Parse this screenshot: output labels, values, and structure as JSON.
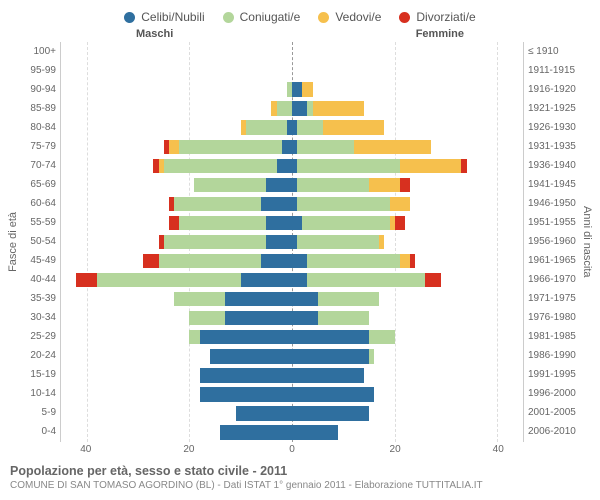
{
  "legend": [
    {
      "label": "Celibi/Nubili",
      "color": "#2f6f9f"
    },
    {
      "label": "Coniugati/e",
      "color": "#b3d69b"
    },
    {
      "label": "Vedovi/e",
      "color": "#f6c04d"
    },
    {
      "label": "Divorziati/e",
      "color": "#d7301f"
    }
  ],
  "gender": {
    "male": "Maschi",
    "female": "Femmine"
  },
  "axis_left_title": "Fasce di età",
  "axis_right_title": "Anni di nascita",
  "x_axis": {
    "max": 45,
    "ticks": [
      40,
      20,
      0,
      20,
      40
    ]
  },
  "title": "Popolazione per età, sesso e stato civile - 2011",
  "subtitle": "COMUNE DI SAN TOMASO AGORDINO (BL) - Dati ISTAT 1° gennaio 2011 - Elaborazione TUTTITALIA.IT",
  "colors": {
    "single": "#2f6f9f",
    "married": "#b3d69b",
    "widowed": "#f6c04d",
    "divorced": "#d7301f"
  },
  "rows": [
    {
      "age": "100+",
      "birth": "≤ 1910",
      "m": {
        "single": 0,
        "married": 0,
        "widowed": 0,
        "divorced": 0
      },
      "f": {
        "single": 0,
        "married": 0,
        "widowed": 0,
        "divorced": 0
      }
    },
    {
      "age": "95-99",
      "birth": "1911-1915",
      "m": {
        "single": 0,
        "married": 0,
        "widowed": 0,
        "divorced": 0
      },
      "f": {
        "single": 0,
        "married": 0,
        "widowed": 0,
        "divorced": 0
      }
    },
    {
      "age": "90-94",
      "birth": "1916-1920",
      "m": {
        "single": 0,
        "married": 1,
        "widowed": 0,
        "divorced": 0
      },
      "f": {
        "single": 2,
        "married": 0,
        "widowed": 2,
        "divorced": 0
      }
    },
    {
      "age": "85-89",
      "birth": "1921-1925",
      "m": {
        "single": 0,
        "married": 3,
        "widowed": 1,
        "divorced": 0
      },
      "f": {
        "single": 3,
        "married": 1,
        "widowed": 10,
        "divorced": 0
      }
    },
    {
      "age": "80-84",
      "birth": "1926-1930",
      "m": {
        "single": 1,
        "married": 8,
        "widowed": 1,
        "divorced": 0
      },
      "f": {
        "single": 1,
        "married": 5,
        "widowed": 12,
        "divorced": 0
      }
    },
    {
      "age": "75-79",
      "birth": "1931-1935",
      "m": {
        "single": 2,
        "married": 20,
        "widowed": 2,
        "divorced": 1
      },
      "f": {
        "single": 1,
        "married": 11,
        "widowed": 15,
        "divorced": 0
      }
    },
    {
      "age": "70-74",
      "birth": "1936-1940",
      "m": {
        "single": 3,
        "married": 22,
        "widowed": 1,
        "divorced": 1
      },
      "f": {
        "single": 1,
        "married": 20,
        "widowed": 12,
        "divorced": 1
      }
    },
    {
      "age": "65-69",
      "birth": "1941-1945",
      "m": {
        "single": 5,
        "married": 14,
        "widowed": 0,
        "divorced": 0
      },
      "f": {
        "single": 1,
        "married": 14,
        "widowed": 6,
        "divorced": 2
      }
    },
    {
      "age": "60-64",
      "birth": "1946-1950",
      "m": {
        "single": 6,
        "married": 17,
        "widowed": 0,
        "divorced": 1
      },
      "f": {
        "single": 1,
        "married": 18,
        "widowed": 4,
        "divorced": 0
      }
    },
    {
      "age": "55-59",
      "birth": "1951-1955",
      "m": {
        "single": 5,
        "married": 17,
        "widowed": 0,
        "divorced": 2
      },
      "f": {
        "single": 2,
        "married": 17,
        "widowed": 1,
        "divorced": 2
      }
    },
    {
      "age": "50-54",
      "birth": "1956-1960",
      "m": {
        "single": 5,
        "married": 20,
        "widowed": 0,
        "divorced": 1
      },
      "f": {
        "single": 1,
        "married": 16,
        "widowed": 1,
        "divorced": 0
      }
    },
    {
      "age": "45-49",
      "birth": "1961-1965",
      "m": {
        "single": 6,
        "married": 20,
        "widowed": 0,
        "divorced": 3
      },
      "f": {
        "single": 3,
        "married": 18,
        "widowed": 2,
        "divorced": 1
      }
    },
    {
      "age": "40-44",
      "birth": "1966-1970",
      "m": {
        "single": 10,
        "married": 28,
        "widowed": 0,
        "divorced": 4
      },
      "f": {
        "single": 3,
        "married": 23,
        "widowed": 0,
        "divorced": 3
      }
    },
    {
      "age": "35-39",
      "birth": "1971-1975",
      "m": {
        "single": 13,
        "married": 10,
        "widowed": 0,
        "divorced": 0
      },
      "f": {
        "single": 5,
        "married": 12,
        "widowed": 0,
        "divorced": 0
      }
    },
    {
      "age": "30-34",
      "birth": "1976-1980",
      "m": {
        "single": 13,
        "married": 7,
        "widowed": 0,
        "divorced": 0
      },
      "f": {
        "single": 5,
        "married": 10,
        "widowed": 0,
        "divorced": 0
      }
    },
    {
      "age": "25-29",
      "birth": "1981-1985",
      "m": {
        "single": 18,
        "married": 2,
        "widowed": 0,
        "divorced": 0
      },
      "f": {
        "single": 15,
        "married": 5,
        "widowed": 0,
        "divorced": 0
      }
    },
    {
      "age": "20-24",
      "birth": "1986-1990",
      "m": {
        "single": 16,
        "married": 0,
        "widowed": 0,
        "divorced": 0
      },
      "f": {
        "single": 15,
        "married": 1,
        "widowed": 0,
        "divorced": 0
      }
    },
    {
      "age": "15-19",
      "birth": "1991-1995",
      "m": {
        "single": 18,
        "married": 0,
        "widowed": 0,
        "divorced": 0
      },
      "f": {
        "single": 14,
        "married": 0,
        "widowed": 0,
        "divorced": 0
      }
    },
    {
      "age": "10-14",
      "birth": "1996-2000",
      "m": {
        "single": 18,
        "married": 0,
        "widowed": 0,
        "divorced": 0
      },
      "f": {
        "single": 16,
        "married": 0,
        "widowed": 0,
        "divorced": 0
      }
    },
    {
      "age": "5-9",
      "birth": "2001-2005",
      "m": {
        "single": 11,
        "married": 0,
        "widowed": 0,
        "divorced": 0
      },
      "f": {
        "single": 15,
        "married": 0,
        "widowed": 0,
        "divorced": 0
      }
    },
    {
      "age": "0-4",
      "birth": "2006-2010",
      "m": {
        "single": 14,
        "married": 0,
        "widowed": 0,
        "divorced": 0
      },
      "f": {
        "single": 9,
        "married": 0,
        "widowed": 0,
        "divorced": 0
      }
    }
  ]
}
